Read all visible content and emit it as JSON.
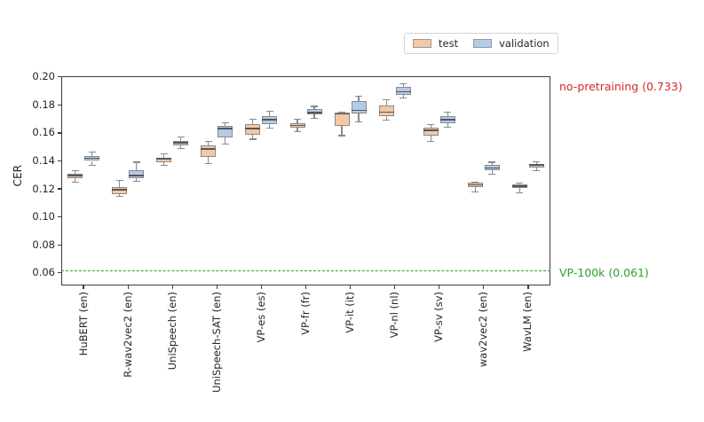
{
  "chart_data": {
    "type": "boxplot",
    "title": "",
    "xlabel": "",
    "ylabel": "CER",
    "ylim": [
      0.051,
      0.2005
    ],
    "yticks": [
      0.2,
      0.18,
      0.16,
      0.14,
      0.12,
      0.1,
      0.08,
      0.06
    ],
    "grid": false,
    "legend_position": "top-right-outside",
    "categories": [
      "HuBERT (en)",
      "R-wav2vec2 (en)",
      "UniSpeech (en)",
      "UniSpeech-SAT (en)",
      "VP-es (es)",
      "VP-fr (fr)",
      "VP-it (it)",
      "VP-nl (nl)",
      "VP-sv (sv)",
      "wav2vec2 (en)",
      "WavLM (en)"
    ],
    "series": [
      {
        "name": "test",
        "fill_color": "#f4c8a3",
        "boxes": [
          {
            "whisker_low": 0.125,
            "q1": 0.1275,
            "median": 0.1295,
            "q3": 0.131,
            "whisker_high": 0.133
          },
          {
            "whisker_low": 0.1145,
            "q1": 0.1165,
            "median": 0.1195,
            "q3": 0.1215,
            "whisker_high": 0.126
          },
          {
            "whisker_low": 0.137,
            "q1": 0.139,
            "median": 0.1415,
            "q3": 0.1425,
            "whisker_high": 0.145
          },
          {
            "whisker_low": 0.138,
            "q1": 0.143,
            "median": 0.1485,
            "q3": 0.151,
            "whisker_high": 0.154
          },
          {
            "whisker_low": 0.1555,
            "q1": 0.159,
            "median": 0.163,
            "q3": 0.166,
            "whisker_high": 0.17
          },
          {
            "whisker_low": 0.161,
            "q1": 0.164,
            "median": 0.1655,
            "q3": 0.167,
            "whisker_high": 0.17
          },
          {
            "whisker_low": 0.158,
            "q1": 0.165,
            "median": 0.1735,
            "q3": 0.1748,
            "whisker_high": 0.175
          },
          {
            "whisker_low": 0.169,
            "q1": 0.172,
            "median": 0.175,
            "q3": 0.1795,
            "whisker_high": 0.1835
          },
          {
            "whisker_low": 0.154,
            "q1": 0.158,
            "median": 0.162,
            "q3": 0.1635,
            "whisker_high": 0.166
          },
          {
            "whisker_low": 0.118,
            "q1": 0.1215,
            "median": 0.123,
            "q3": 0.1245,
            "whisker_high": 0.125
          },
          {
            "whisker_low": 0.117,
            "q1": 0.1205,
            "median": 0.122,
            "q3": 0.1235,
            "whisker_high": 0.124
          }
        ]
      },
      {
        "name": "validation",
        "fill_color": "#b2cbeb",
        "boxes": [
          {
            "whisker_low": 0.137,
            "q1": 0.14,
            "median": 0.142,
            "q3": 0.1435,
            "whisker_high": 0.1465
          },
          {
            "whisker_low": 0.1255,
            "q1": 0.1275,
            "median": 0.1295,
            "q3": 0.1335,
            "whisker_high": 0.139
          },
          {
            "whisker_low": 0.149,
            "q1": 0.151,
            "median": 0.153,
            "q3": 0.1545,
            "whisker_high": 0.157
          },
          {
            "whisker_low": 0.152,
            "q1": 0.1565,
            "median": 0.163,
            "q3": 0.165,
            "whisker_high": 0.167
          },
          {
            "whisker_low": 0.1635,
            "q1": 0.166,
            "median": 0.1695,
            "q3": 0.172,
            "whisker_high": 0.1755
          },
          {
            "whisker_low": 0.1705,
            "q1": 0.173,
            "median": 0.1745,
            "q3": 0.177,
            "whisker_high": 0.179
          },
          {
            "whisker_low": 0.168,
            "q1": 0.174,
            "median": 0.176,
            "q3": 0.1825,
            "whisker_high": 0.1865
          },
          {
            "whisker_low": 0.185,
            "q1": 0.1875,
            "median": 0.1895,
            "q3": 0.193,
            "whisker_high": 0.195
          },
          {
            "whisker_low": 0.164,
            "q1": 0.167,
            "median": 0.1695,
            "q3": 0.172,
            "whisker_high": 0.175
          },
          {
            "whisker_low": 0.1305,
            "q1": 0.1335,
            "median": 0.135,
            "q3": 0.137,
            "whisker_high": 0.139
          },
          {
            "whisker_low": 0.133,
            "q1": 0.1355,
            "median": 0.137,
            "q3": 0.138,
            "whisker_high": 0.1395
          }
        ]
      }
    ],
    "reference_lines": [
      {
        "label": "no-pretraining (0.733)",
        "value": 0.733,
        "color": "#d62728",
        "style": "label-only",
        "position": "top-right"
      },
      {
        "label": "VP-100k (0.061)",
        "value": 0.061,
        "color": "#2ca02c",
        "style": "dashed",
        "position": "right"
      }
    ]
  }
}
